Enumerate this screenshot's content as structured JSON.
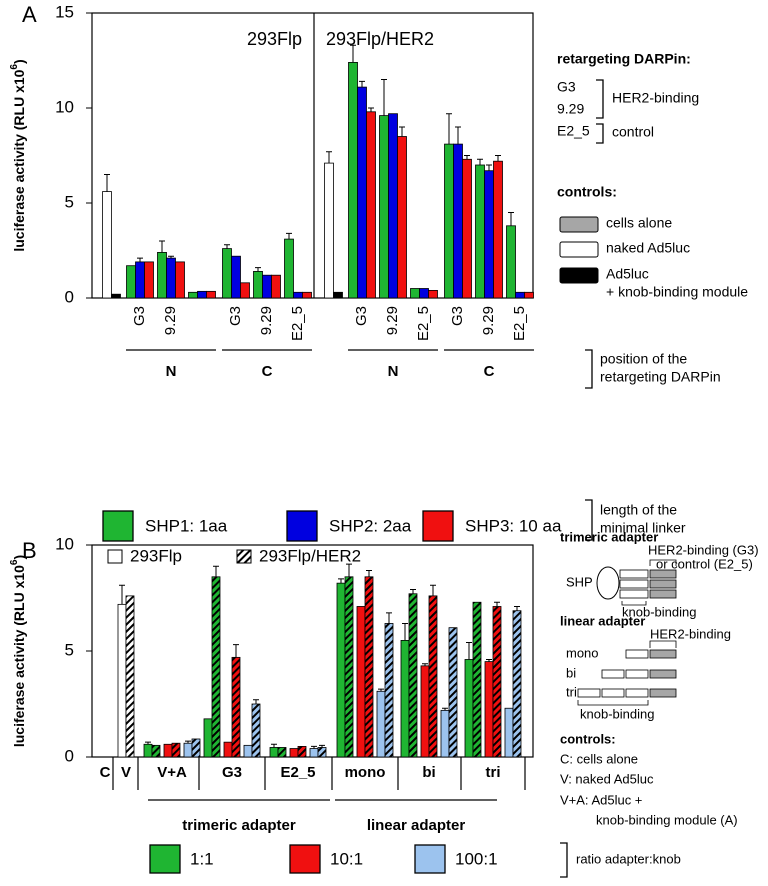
{
  "chart_data": [
    {
      "type": "bar",
      "panel_label": "A",
      "ylabel": [
        "luciferase activity (RLU x10",
        "6",
        ")"
      ],
      "ylim": [
        0,
        15
      ],
      "yticks": [
        0,
        5,
        10,
        15
      ],
      "panel_titles": [
        "293Flp",
        "293Flp/HER2"
      ],
      "categories": [
        [
          "G3",
          "9.29",
          null,
          "G3",
          "9.29",
          "E2_5"
        ],
        [
          "G3",
          "9.29",
          "E2_5",
          "G3",
          "9.29",
          "E2_5"
        ]
      ],
      "groups": [
        "N",
        "C"
      ],
      "control_values": [
        [
          5.6,
          0.2
        ],
        [
          7.1,
          0.3
        ]
      ],
      "control_errors": [
        [
          0.9,
          null
        ],
        [
          0.6,
          null
        ]
      ],
      "control_colors": [
        "#ffffff",
        "#000000"
      ],
      "series": [
        {
          "name": "SHP1: 1aa",
          "color": "#1fb532",
          "values": [
            [
              1.7,
              2.4,
              0.3,
              2.6,
              1.4,
              3.1
            ],
            [
              12.4,
              9.6,
              0.5,
              8.1,
              7.0,
              3.8
            ]
          ],
          "errors": [
            [
              null,
              0.6,
              null,
              0.2,
              0.2,
              0.3
            ],
            [
              0.9,
              1.9,
              null,
              1.6,
              0.3,
              0.7
            ]
          ]
        },
        {
          "name": "SHP2: 2aa",
          "color": "#0000e0",
          "values": [
            [
              1.9,
              2.1,
              0.35,
              2.2,
              1.2,
              0.3
            ],
            [
              11.1,
              9.7,
              0.5,
              8.1,
              6.7,
              0.3
            ]
          ],
          "errors": [
            [
              0.2,
              0.1,
              null,
              null,
              null,
              null
            ],
            [
              0.3,
              null,
              null,
              0.9,
              0.3,
              null
            ]
          ]
        },
        {
          "name": "SHP3: 10 aa",
          "color": "#f01010",
          "values": [
            [
              1.9,
              1.9,
              0.35,
              0.8,
              1.2,
              0.3
            ],
            [
              9.8,
              8.5,
              0.4,
              7.3,
              7.2,
              0.3
            ]
          ],
          "errors": [
            [
              null,
              null,
              null,
              null,
              null,
              null
            ],
            [
              0.2,
              0.5,
              null,
              0.2,
              0.3,
              null
            ]
          ]
        }
      ],
      "darpin_legend": {
        "title": "retargeting DARPin:",
        "items": [
          "G3",
          "9.29",
          "E2_5"
        ],
        "groups": [
          "HER2-binding",
          "control"
        ]
      },
      "controls_legend": {
        "title": "controls:",
        "items": [
          {
            "label": [
              "cells alone"
            ],
            "color": "#a6a6a6"
          },
          {
            "label": [
              "naked Ad5luc"
            ],
            "color": "#ffffff"
          },
          {
            "label": [
              "Ad5luc",
              "+ knob-binding module"
            ],
            "color": "#000000"
          }
        ]
      },
      "notes": [
        [
          "position of the",
          "retargeting DARPin"
        ],
        [
          "length of the",
          "minimal linker"
        ]
      ]
    },
    {
      "type": "bar",
      "panel_label": "B",
      "ylabel": [
        "luciferase activity (RLU x10",
        "6",
        ")"
      ],
      "ylim": [
        0,
        10
      ],
      "yticks": [
        0,
        5,
        10
      ],
      "cell_lines": [
        {
          "name": "293Flp",
          "hatched": false
        },
        {
          "name": "293Flp/HER2",
          "hatched": true
        }
      ],
      "controls": {
        "categories": [
          "C",
          "V"
        ],
        "color": "#ffffff",
        "values": [
          0,
          7.2
        ],
        "errors": [
          null,
          0.9
        ],
        "values_hatched": [
          null,
          7.6
        ],
        "errors_hatched": [
          null,
          null
        ]
      },
      "categories": [
        "V+A",
        "G3",
        "E2_5",
        "mono",
        "bi",
        "tri"
      ],
      "groups": [
        "trimeric adapter",
        "linear adapter"
      ],
      "series": [
        {
          "name": "1:1",
          "color": "#1fb532",
          "values": [
            0.6,
            1.8,
            0.45,
            8.2,
            5.5,
            4.6
          ],
          "errors": [
            0.1,
            null,
            0.15,
            0.2,
            0.8,
            0.8
          ],
          "values_hatched": [
            0.55,
            8.5,
            0.45,
            8.5,
            7.7,
            7.3
          ],
          "errors_hatched": [
            null,
            0.5,
            null,
            0.6,
            0.2,
            null
          ]
        },
        {
          "name": "10:1",
          "color": "#f01010",
          "values": [
            0.6,
            0.7,
            0.4,
            7.1,
            4.3,
            4.5
          ],
          "errors": [
            null,
            null,
            null,
            null,
            0.1,
            0.1
          ],
          "values_hatched": [
            0.65,
            4.7,
            0.5,
            8.5,
            7.6,
            7.1
          ],
          "errors_hatched": [
            null,
            0.6,
            null,
            0.3,
            0.5,
            0.2
          ]
        },
        {
          "name": "100:1",
          "color": "#9cc3ee",
          "values": [
            0.65,
            0.55,
            0.4,
            3.1,
            2.2,
            2.3
          ],
          "errors": [
            0.1,
            null,
            0.1,
            0.1,
            0.1,
            null
          ],
          "values_hatched": [
            0.85,
            2.5,
            0.45,
            6.3,
            6.1,
            6.9
          ],
          "errors_hatched": [
            null,
            0.2,
            0.1,
            0.5,
            null,
            0.2
          ]
        }
      ],
      "legend_title": "ratio adapter:knob",
      "annotations": {
        "trimeric": {
          "title": "trimeric adapter",
          "core": "SHP",
          "target": [
            "HER2-binding (G3)",
            "or control (E2_5)"
          ],
          "knob": "knob-binding"
        },
        "linear": {
          "title": "linear adapter",
          "target": "HER2-binding",
          "variants": [
            "mono",
            "bi",
            "tri"
          ],
          "knob": "knob-binding"
        },
        "controls": {
          "title": "controls:",
          "items": [
            "C: cells alone",
            "V: naked Ad5luc",
            "V+A: Ad5luc +",
            "knob-binding module (A)"
          ]
        }
      }
    }
  ]
}
